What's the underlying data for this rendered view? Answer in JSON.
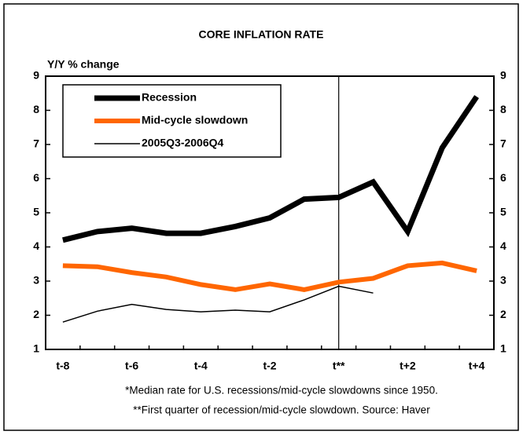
{
  "chart_data": {
    "type": "line",
    "title": "CORE INFLATION RATE",
    "y_axis_label": "Y/Y % change",
    "footnotes": [
      "*Median rate for U.S. recessions/mid-cycle slowdowns since 1950.",
      "**First quarter of recession/mid-cycle slowdown.  Source: Haver"
    ],
    "categories": [
      "t-8",
      null,
      "t-6",
      null,
      "t-4",
      null,
      "t-2",
      null,
      "t**",
      null,
      "t+2",
      null,
      "t+4"
    ],
    "marker_category": "t**",
    "series": [
      {
        "name": "Recession",
        "color": "#000000",
        "line_width": 7,
        "values": [
          4.2,
          4.45,
          4.55,
          4.4,
          4.4,
          4.6,
          4.85,
          5.4,
          5.45,
          5.9,
          4.45,
          6.9,
          8.4
        ]
      },
      {
        "name": "Mid-cycle slowdown",
        "color": "#ff6600",
        "line_width": 6,
        "values": [
          3.45,
          3.42,
          3.25,
          3.12,
          2.9,
          2.75,
          2.92,
          2.75,
          2.97,
          3.08,
          3.45,
          3.53,
          3.3
        ]
      },
      {
        "name": "2005Q3-2006Q4",
        "color": "#000000",
        "line_width": 1.5,
        "values": [
          1.8,
          2.12,
          2.32,
          2.17,
          2.1,
          2.15,
          2.1,
          2.45,
          2.85,
          2.65,
          null,
          null,
          null
        ]
      }
    ],
    "ylim": [
      1,
      9
    ],
    "yticks": [
      1,
      2,
      3,
      4,
      5,
      6,
      7,
      8,
      9
    ],
    "y2lim": [
      1,
      9
    ],
    "y2ticks": [
      1,
      2,
      3,
      4,
      5,
      6,
      7,
      8,
      9
    ],
    "grid": false,
    "legend": "top-left"
  }
}
